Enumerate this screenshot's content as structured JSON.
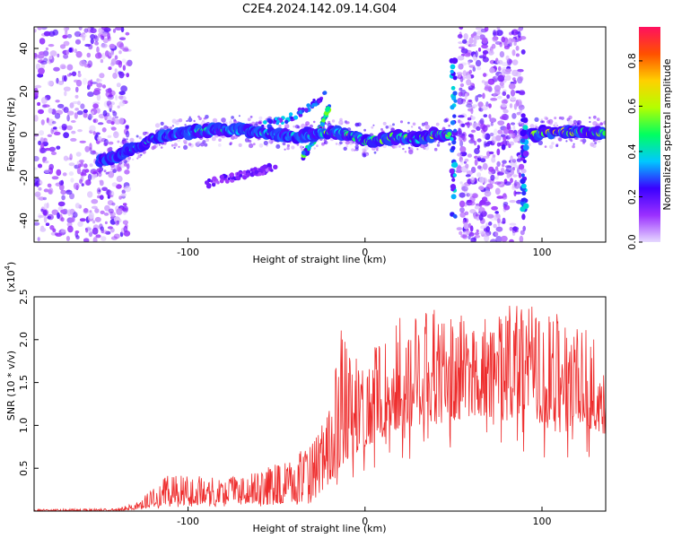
{
  "title": "C2E4.2024.142.09.14.G04",
  "chart_data": [
    {
      "type": "heatmap",
      "xlabel": "Height of straight line (km)",
      "ylabel": "Frequency (Hz)",
      "xlim": [
        -187,
        136
      ],
      "ylim": [
        -50,
        50
      ],
      "xticks": [
        -100,
        0,
        100
      ],
      "yticks": [
        -40,
        -20,
        0,
        20,
        40
      ],
      "colorbar": {
        "label": "Normalized spectral amplitude",
        "range": [
          0.0,
          0.95
        ],
        "ticks": [
          0.0,
          0.2,
          0.4,
          0.6,
          0.8
        ],
        "colors": [
          "#e6d9ff",
          "#9b30ff",
          "#3a00ff",
          "#00c8ff",
          "#00ff60",
          "#b4ff00",
          "#ffd000",
          "#ff5000",
          "#ff1060"
        ]
      },
      "noise_bands_x": [
        [
          -187,
          -133
        ],
        [
          53,
          90
        ]
      ],
      "ridge": {
        "x": [
          -150,
          -140,
          -130,
          -120,
          -110,
          -100,
          -90,
          -80,
          -70,
          -60,
          -50,
          -40,
          -30,
          -20,
          -10,
          0,
          10,
          20,
          30,
          40,
          45,
          92,
          100,
          110,
          120,
          130,
          136
        ],
        "freq": [
          -12,
          -10,
          -6,
          -2,
          0,
          1,
          2,
          2,
          2,
          1,
          0,
          -1,
          0,
          1,
          0,
          -3,
          -2,
          -1,
          -2,
          0,
          0,
          -1,
          1,
          1,
          1,
          1,
          1
        ],
        "amp": [
          0.3,
          0.35,
          0.35,
          0.4,
          0.45,
          0.5,
          0.5,
          0.45,
          0.5,
          0.45,
          0.5,
          0.45,
          0.45,
          0.55,
          0.75,
          0.6,
          0.7,
          0.65,
          0.65,
          0.75,
          0.6,
          0.7,
          0.8,
          0.85,
          0.85,
          0.8,
          0.75
        ]
      },
      "streaks": [
        {
          "x": [
            -90,
            -75,
            -60,
            -45,
            -35,
            -28,
            -22
          ],
          "freq": [
            0,
            2,
            4,
            7,
            11,
            15,
            20
          ],
          "amp": 0.25
        },
        {
          "x": [
            -35,
            -30,
            -25,
            -20
          ],
          "freq": [
            -10,
            -4,
            3,
            14
          ],
          "amp": 0.4
        },
        {
          "x": [
            -90,
            -80,
            -70,
            -60,
            -50
          ],
          "freq": [
            -23,
            -21,
            -19,
            -17,
            -15
          ],
          "amp": 0.15
        }
      ]
    },
    {
      "type": "line",
      "xlabel": "Height of straight line (km)",
      "ylabel": "SNR (10 * v/v)",
      "y_multiplier_label": "(x10",
      "y_multiplier_exp": "4",
      "xlim": [
        -187,
        136
      ],
      "ylim": [
        0,
        2.5
      ],
      "xticks": [
        -100,
        0,
        100
      ],
      "yticks": [
        0.5,
        1.0,
        1.5,
        2.0,
        2.5
      ],
      "color": "#ee2c2c",
      "envelope": {
        "x": [
          -187,
          -140,
          -130,
          -120,
          -110,
          -90,
          -70,
          -50,
          -40,
          -30,
          -20,
          -15,
          -10,
          0,
          10,
          20,
          30,
          40,
          50,
          60,
          70,
          80,
          90,
          100,
          110,
          120,
          130,
          136
        ],
        "low": [
          0.0,
          0.0,
          0.02,
          0.05,
          0.08,
          0.08,
          0.08,
          0.08,
          0.1,
          0.12,
          0.3,
          0.5,
          0.6,
          0.75,
          0.85,
          0.95,
          1.0,
          1.1,
          1.05,
          1.1,
          1.1,
          1.05,
          1.1,
          1.0,
          1.05,
          1.0,
          0.9,
          0.9
        ],
        "high": [
          0.02,
          0.03,
          0.1,
          0.25,
          0.45,
          0.4,
          0.4,
          0.55,
          0.65,
          0.8,
          1.2,
          2.2,
          1.9,
          1.75,
          2.1,
          2.3,
          2.4,
          2.35,
          2.3,
          2.3,
          2.35,
          2.4,
          2.45,
          2.3,
          2.35,
          2.3,
          2.0,
          1.8
        ]
      }
    }
  ]
}
